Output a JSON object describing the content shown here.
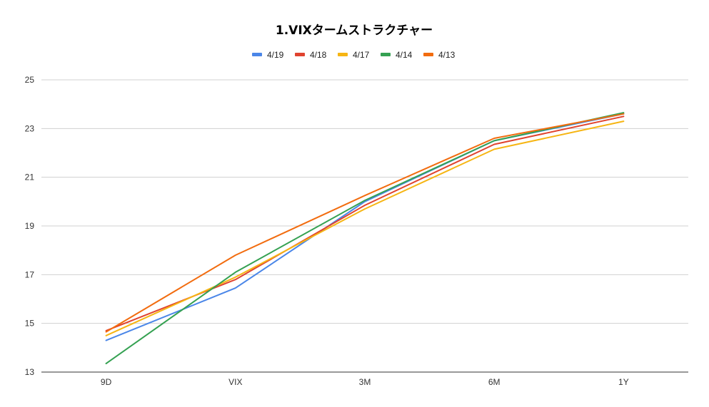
{
  "chart_data": {
    "type": "line",
    "title": "1.VIXタームストラクチャー",
    "xlabel": "",
    "ylabel": "",
    "categories": [
      "9D",
      "VIX",
      "3M",
      "6M",
      "1Y"
    ],
    "ylim": [
      13,
      25
    ],
    "yticks": [
      13,
      15,
      17,
      19,
      21,
      23,
      25
    ],
    "grid": true,
    "legend_position": "top",
    "series": [
      {
        "name": "4/19",
        "color": "#4a86e8",
        "values": [
          14.3,
          16.45,
          20.0,
          22.5,
          23.6
        ]
      },
      {
        "name": "4/18",
        "color": "#e0432f",
        "values": [
          14.7,
          16.8,
          19.85,
          22.35,
          23.5
        ]
      },
      {
        "name": "4/17",
        "color": "#f6b513",
        "values": [
          14.5,
          16.9,
          19.7,
          22.15,
          23.3
        ]
      },
      {
        "name": "4/14",
        "color": "#35a152",
        "values": [
          13.35,
          17.1,
          20.05,
          22.5,
          23.65
        ]
      },
      {
        "name": "4/13",
        "color": "#f26c0f",
        "values": [
          14.65,
          17.8,
          20.25,
          22.6,
          23.6
        ]
      }
    ]
  }
}
